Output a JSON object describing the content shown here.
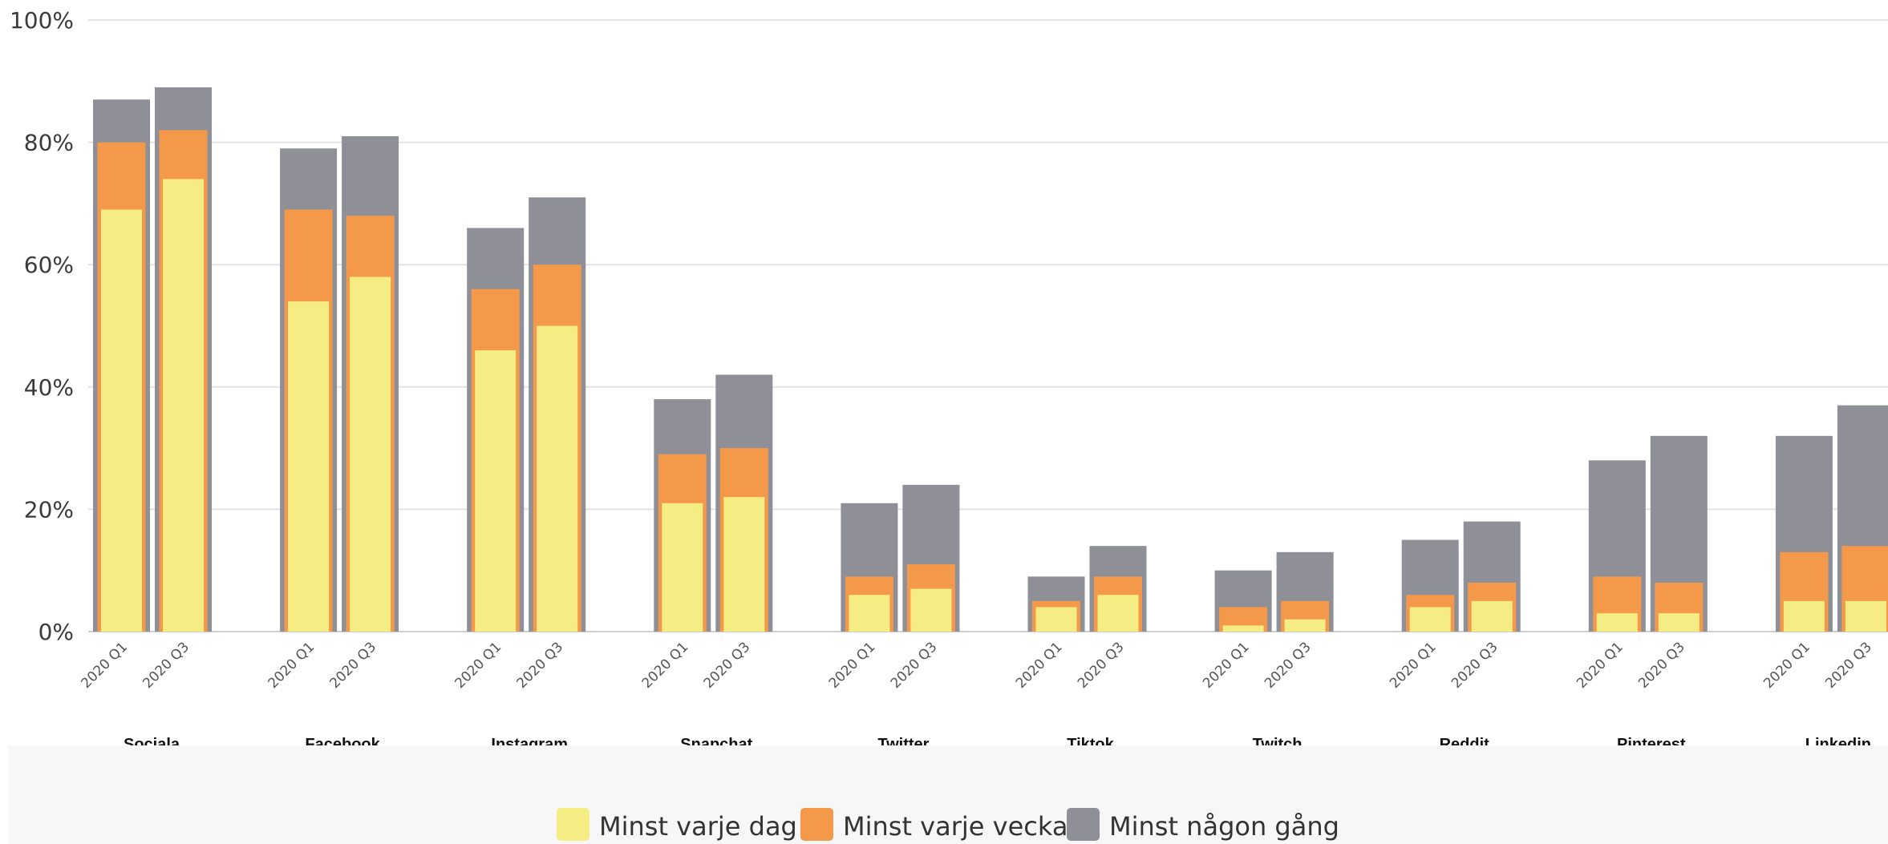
{
  "chart_data": {
    "type": "bar",
    "stacked": true,
    "ylim": [
      0,
      100
    ],
    "yticks": [
      "0%",
      "20%",
      "40%",
      "60%",
      "80%",
      "100%"
    ],
    "grid": true,
    "legend_position": "bottom",
    "series": [
      {
        "name": "Minst varje dag",
        "color": "#f5ec84"
      },
      {
        "name": "Minst varje vecka",
        "color": "#f4994a"
      },
      {
        "name": "Minst någon gång",
        "color": "#8e8f97"
      }
    ],
    "groups": [
      {
        "label": "Sociala medier",
        "bars": [
          {
            "period": "2020 Q1",
            "values": [
              69,
              80,
              87
            ]
          },
          {
            "period": "2020 Q3",
            "values": [
              74,
              82,
              89
            ]
          }
        ]
      },
      {
        "label": "Facebook",
        "bars": [
          {
            "period": "2020 Q1",
            "values": [
              54,
              69,
              79
            ]
          },
          {
            "period": "2020 Q3",
            "values": [
              58,
              68,
              81
            ]
          }
        ]
      },
      {
        "label": "Instagram",
        "bars": [
          {
            "period": "2020 Q1",
            "values": [
              46,
              56,
              66
            ]
          },
          {
            "period": "2020 Q3",
            "values": [
              50,
              60,
              71
            ]
          }
        ]
      },
      {
        "label": "Snapchat",
        "bars": [
          {
            "period": "2020 Q1",
            "values": [
              21,
              29,
              38
            ]
          },
          {
            "period": "2020 Q3",
            "values": [
              22,
              30,
              42
            ]
          }
        ]
      },
      {
        "label": "Twitter",
        "bars": [
          {
            "period": "2020 Q1",
            "values": [
              6,
              9,
              21
            ]
          },
          {
            "period": "2020 Q3",
            "values": [
              7,
              11,
              24
            ]
          }
        ]
      },
      {
        "label": "Tiktok",
        "bars": [
          {
            "period": "2020 Q1",
            "values": [
              4,
              5,
              9
            ]
          },
          {
            "period": "2020 Q3",
            "values": [
              6,
              9,
              14
            ]
          }
        ]
      },
      {
        "label": "Twitch",
        "bars": [
          {
            "period": "2020 Q1",
            "values": [
              1,
              4,
              10
            ]
          },
          {
            "period": "2020 Q3",
            "values": [
              2,
              5,
              13
            ]
          }
        ]
      },
      {
        "label": "Reddit",
        "bars": [
          {
            "period": "2020 Q1",
            "values": [
              4,
              6,
              15
            ]
          },
          {
            "period": "2020 Q3",
            "values": [
              5,
              8,
              18
            ]
          }
        ]
      },
      {
        "label": "Pinterest",
        "bars": [
          {
            "period": "2020 Q1",
            "values": [
              3,
              9,
              28
            ]
          },
          {
            "period": "2020 Q3",
            "values": [
              3,
              8,
              32
            ]
          }
        ]
      },
      {
        "label": "Linkedin",
        "bars": [
          {
            "period": "2020 Q1",
            "values": [
              5,
              13,
              32
            ]
          },
          {
            "period": "2020 Q3",
            "values": [
              5,
              14,
              37
            ]
          }
        ]
      }
    ]
  }
}
